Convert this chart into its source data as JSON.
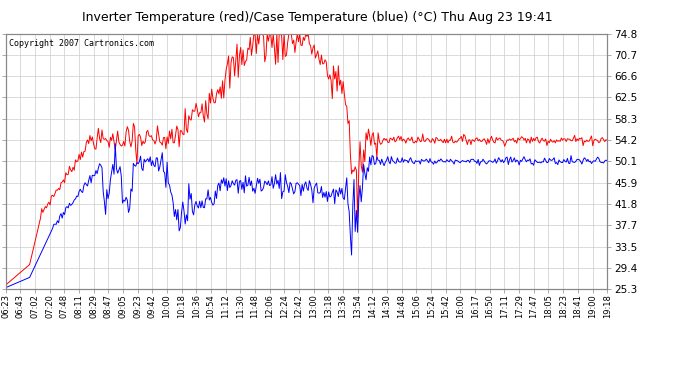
{
  "title": "Inverter Temperature (red)/Case Temperature (blue) (°C) Thu Aug 23 19:41",
  "copyright": "Copyright 2007 Cartronics.com",
  "yticks": [
    25.3,
    29.4,
    33.5,
    37.7,
    41.8,
    45.9,
    50.1,
    54.2,
    58.3,
    62.5,
    66.6,
    70.7,
    74.8
  ],
  "ymin": 25.3,
  "ymax": 74.8,
  "bg_color": "#ffffff",
  "plot_bg_color": "#ffffff",
  "grid_color": "#cccccc",
  "red_color": "#ff0000",
  "blue_color": "#0000ff",
  "xtick_labels": [
    "06:23",
    "06:43",
    "07:02",
    "07:20",
    "07:48",
    "08:11",
    "08:29",
    "08:47",
    "09:05",
    "09:23",
    "09:42",
    "10:00",
    "10:18",
    "10:36",
    "10:54",
    "11:12",
    "11:30",
    "11:48",
    "12:06",
    "12:24",
    "12:42",
    "13:00",
    "13:18",
    "13:36",
    "13:54",
    "14:12",
    "14:30",
    "14:48",
    "15:06",
    "15:24",
    "15:42",
    "16:00",
    "16:17",
    "16:50",
    "17:11",
    "17:29",
    "17:47",
    "18:05",
    "18:23",
    "18:41",
    "19:00",
    "19:18"
  ],
  "n_points": 500
}
